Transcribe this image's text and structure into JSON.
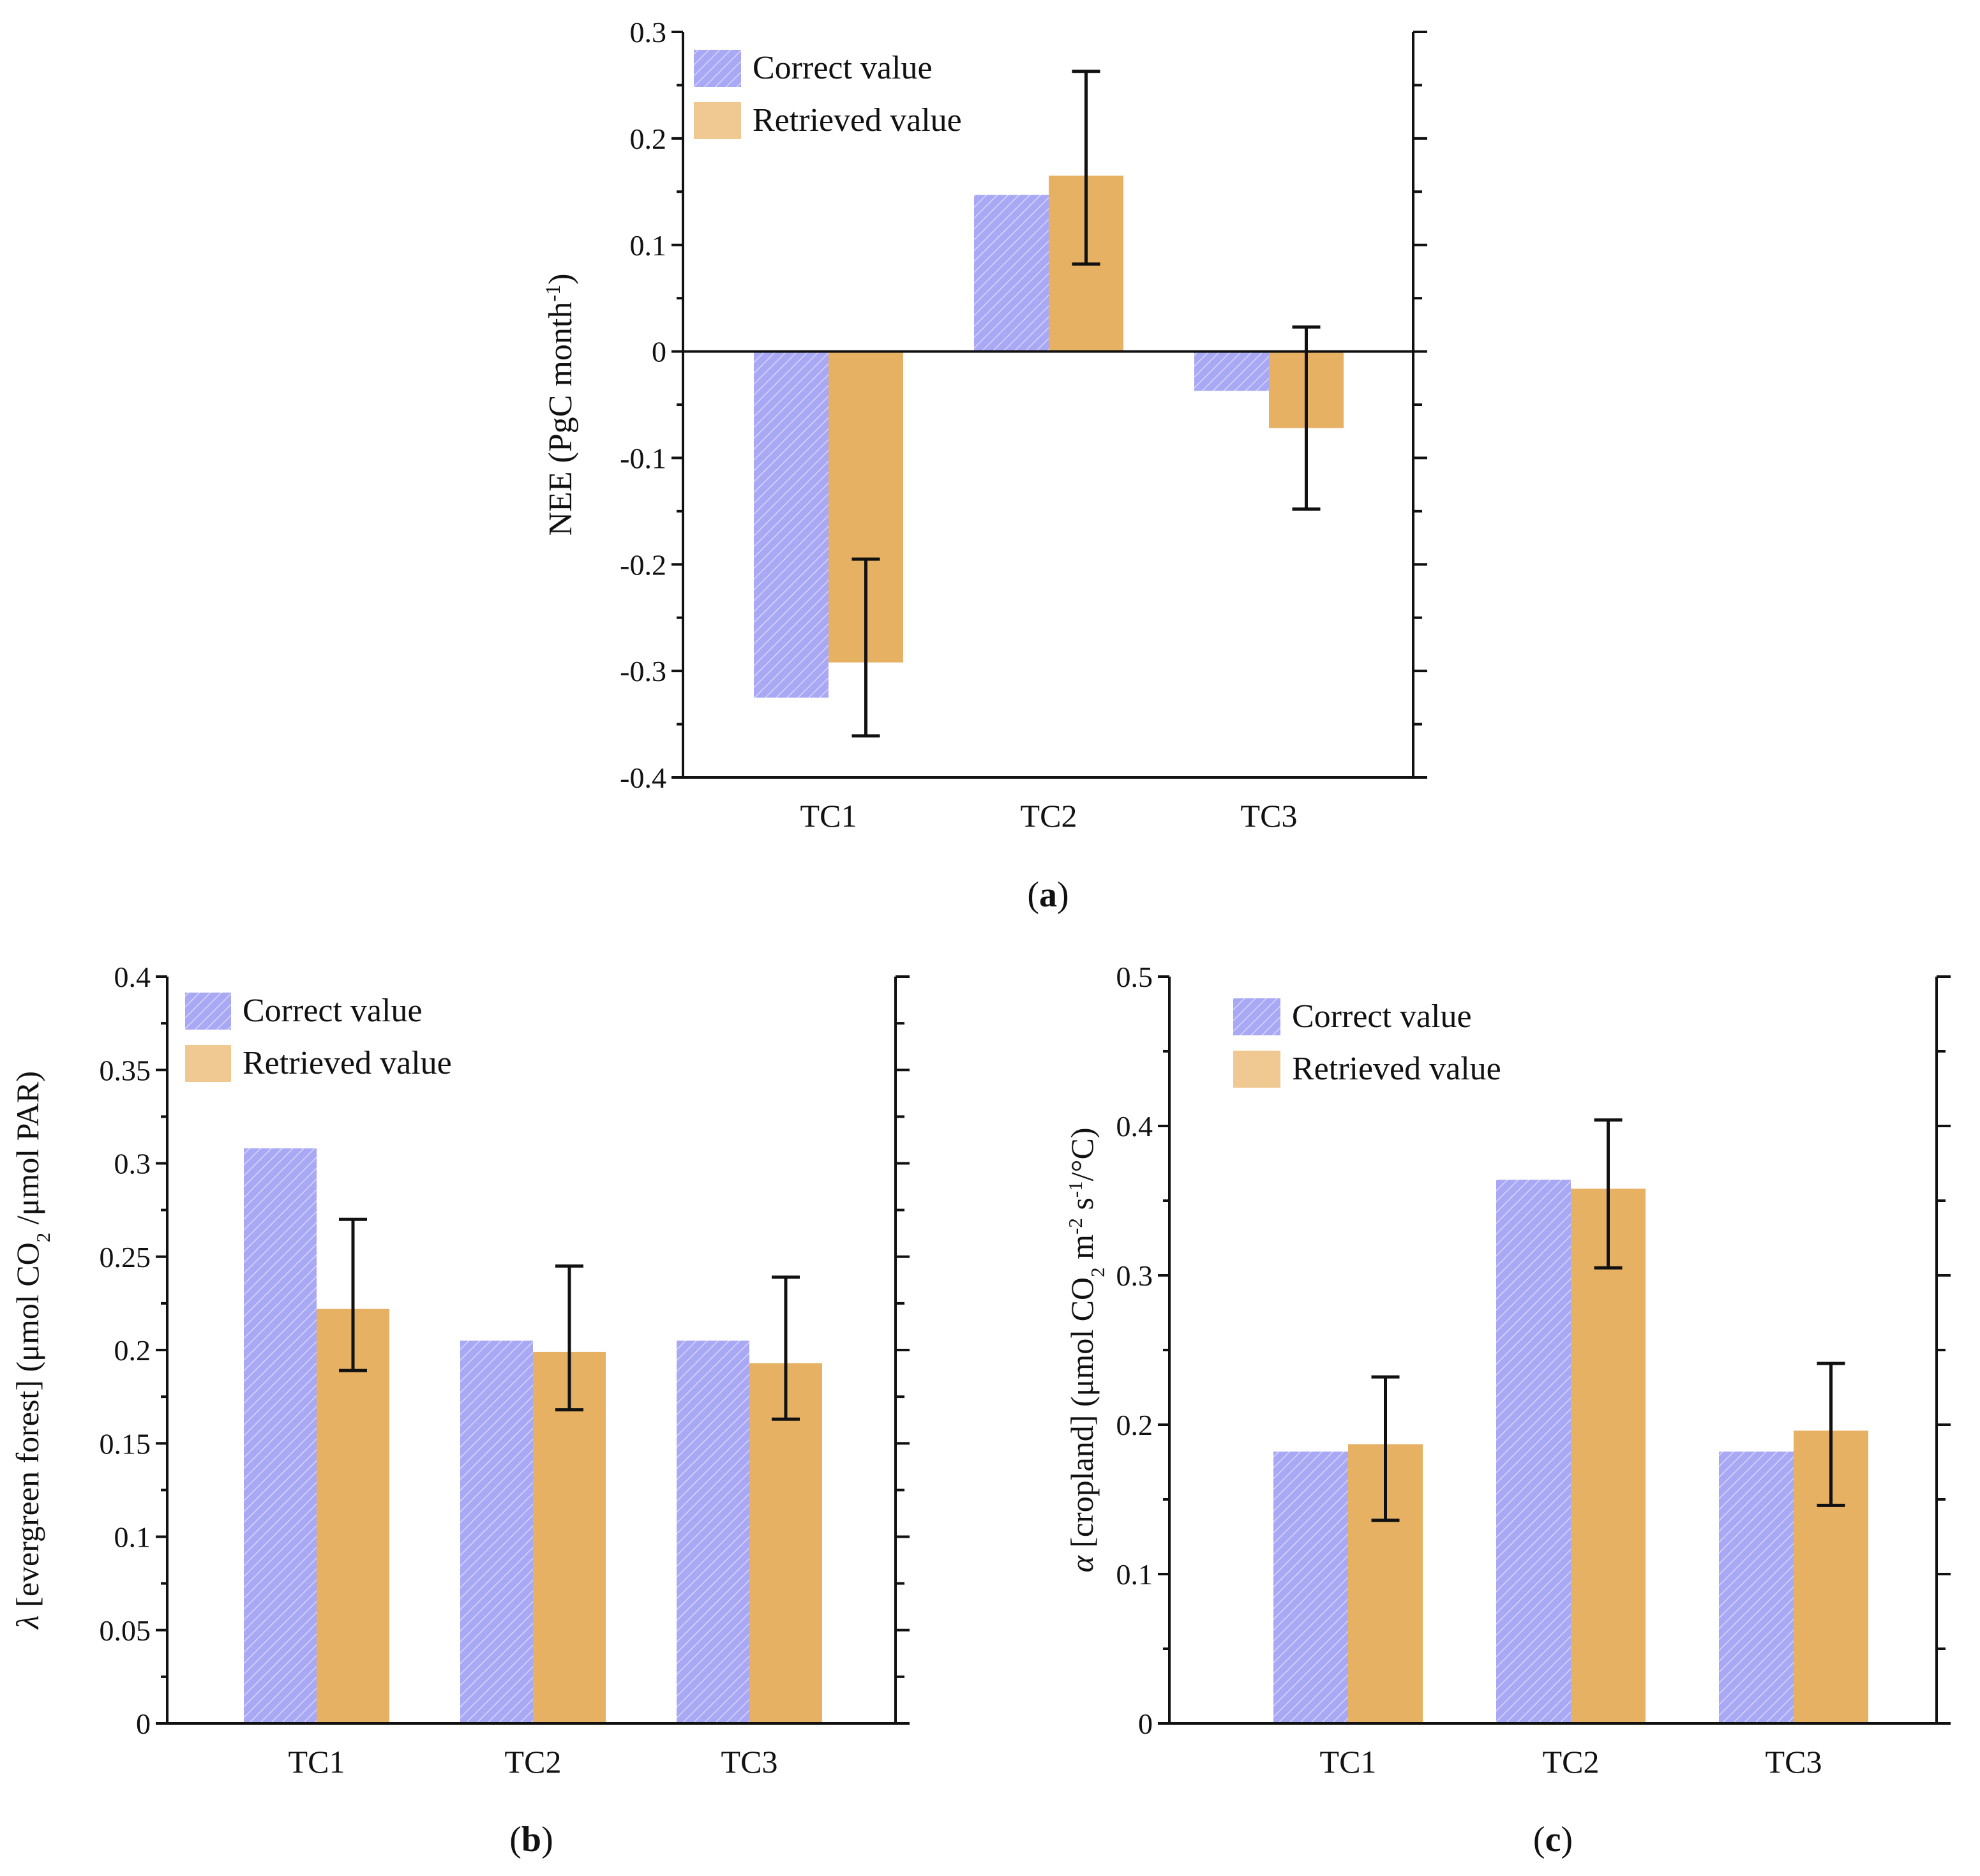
{
  "colors": {
    "correct": "#a8a8f5",
    "correct_stripe": "#d7d7fb",
    "retrieved": "#e6b162",
    "retrieved_legend": "#f0c992",
    "axis": "#111111"
  },
  "chart_data": [
    {
      "id": "a",
      "type": "bar",
      "panel_label": "a",
      "categories": [
        "TC1",
        "TC2",
        "TC3"
      ],
      "series": [
        {
          "name": "Correct value",
          "values": [
            -0.325,
            0.147,
            -0.037
          ]
        },
        {
          "name": "Retrieved value",
          "values": [
            -0.292,
            0.165,
            -0.072
          ],
          "error_low": [
            -0.361,
            0.082,
            -0.148
          ],
          "error_high": [
            -0.195,
            0.263,
            0.023
          ]
        }
      ],
      "ylabel": "NEE (PgC month-1)",
      "ylabel_parts": {
        "main": "NEE (PgC month",
        "sup": "-1",
        "end": ")"
      },
      "ylim": [
        -0.4,
        0.3
      ],
      "yticks": [
        -0.4,
        -0.3,
        -0.2,
        -0.1,
        0,
        0.1,
        0.2,
        0.3
      ],
      "ytick_labels": [
        "-0.4",
        "-0.3",
        "-0.2",
        "-0.1",
        "0",
        "0.1",
        "0.2",
        "0.3"
      ],
      "legend": [
        "Correct value",
        "Retrieved value"
      ],
      "legend_position": "top-left",
      "baseline_line": true
    },
    {
      "id": "b",
      "type": "bar",
      "panel_label": "b",
      "categories": [
        "TC1",
        "TC2",
        "TC3"
      ],
      "series": [
        {
          "name": "Correct value",
          "values": [
            0.308,
            0.205,
            0.205
          ]
        },
        {
          "name": "Retrieved value",
          "values": [
            0.222,
            0.199,
            0.193
          ],
          "error_low": [
            0.189,
            0.168,
            0.163
          ],
          "error_high": [
            0.27,
            0.245,
            0.239
          ]
        }
      ],
      "ylabel": "λ [evergreen forest] (μmol CO2 /μmol PAR)",
      "ylabel_parts": {
        "symbol": "λ",
        "main": " [evergreen forest] (μmol CO",
        "sub": "2",
        "end": " /μmol PAR)"
      },
      "ylim": [
        0,
        0.4
      ],
      "yticks": [
        0,
        0.05,
        0.1,
        0.15,
        0.2,
        0.25,
        0.3,
        0.35,
        0.4
      ],
      "ytick_labels": [
        "0",
        "0.05",
        "0.1",
        "0.15",
        "0.2",
        "0.25",
        "0.3",
        "0.35",
        "0.4"
      ],
      "legend": [
        "Correct value",
        "Retrieved value"
      ],
      "legend_position": "top-left",
      "baseline_line": false
    },
    {
      "id": "c",
      "type": "bar",
      "panel_label": "c",
      "categories": [
        "TC1",
        "TC2",
        "TC3"
      ],
      "series": [
        {
          "name": "Correct value",
          "values": [
            0.182,
            0.364,
            0.182
          ]
        },
        {
          "name": "Retrieved value",
          "values": [
            0.187,
            0.358,
            0.196
          ],
          "error_low": [
            0.136,
            0.305,
            0.146
          ],
          "error_high": [
            0.232,
            0.404,
            0.241
          ]
        }
      ],
      "ylabel": "α [cropland] (μmol CO2 m-2 s-1/°C)",
      "ylabel_parts": {
        "symbol": "α",
        "main": " [cropland] (μmol CO",
        "sub": "2",
        "mid": " m",
        "sup1": "-2",
        "mid2": " s",
        "sup2": "-1",
        "end": "/°C)"
      },
      "ylim": [
        0,
        0.5
      ],
      "yticks": [
        0,
        0.1,
        0.2,
        0.3,
        0.4,
        0.5
      ],
      "ytick_labels": [
        "0",
        "0.1",
        "0.2",
        "0.3",
        "0.4",
        "0.5"
      ],
      "legend": [
        "Correct value",
        "Retrieved value"
      ],
      "legend_position": "top-left",
      "baseline_line": false
    }
  ]
}
